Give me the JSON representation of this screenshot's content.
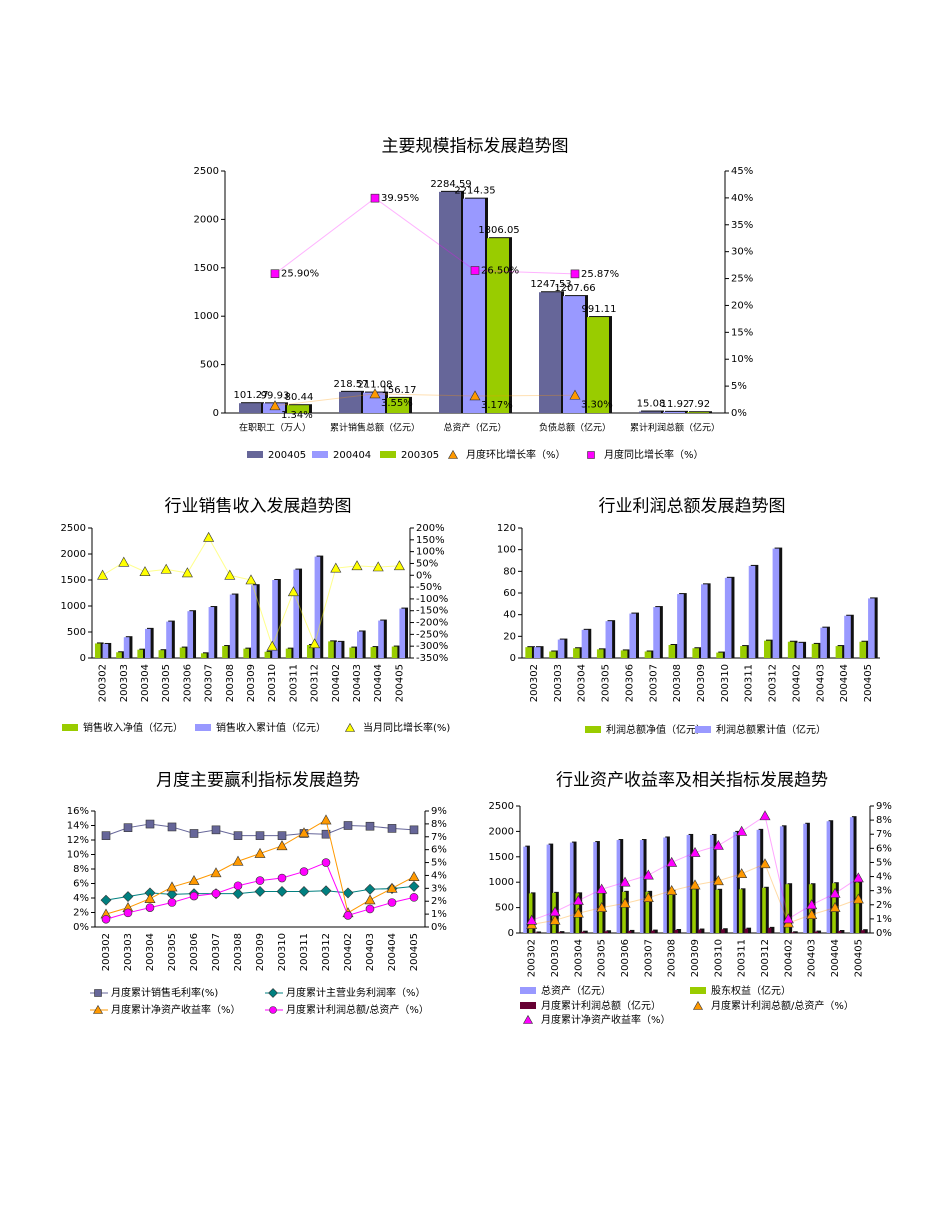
{
  "chart_data": [
    {
      "type": "bar",
      "title": "主要规模指标发展趋势图",
      "categories": [
        "在职职工（万人）",
        "累计销售总额（亿元）",
        "总资产（亿元）",
        "负债总额（亿元）",
        "累计利润总额（亿元）"
      ],
      "series": [
        {
          "name": "200405",
          "type": "bar",
          "color": "#666699",
          "values": [
            101.27,
            218.57,
            2284.59,
            1247.53,
            15.08
          ]
        },
        {
          "name": "200404",
          "type": "bar",
          "color": "#9999ff",
          "values": [
            99.93,
            211.08,
            2214.35,
            1207.66,
            11.92
          ]
        },
        {
          "name": "200305",
          "type": "bar",
          "color": "#99cc00",
          "values": [
            80.44,
            156.17,
            1806.05,
            991.11,
            7.92
          ]
        },
        {
          "name": "月度环比增长率（%）",
          "type": "line",
          "marker": "triangle",
          "color": "#ff9900",
          "axis": "y2",
          "values": [
            1.34,
            3.55,
            3.17,
            3.3,
            null
          ],
          "value_labels": [
            "1.34%",
            "3.55%",
            "3.17%",
            "3.30%",
            null
          ]
        },
        {
          "name": "月度同比增长率（%）",
          "type": "line",
          "marker": "square",
          "color": "#ff00ff",
          "axis": "y2",
          "values": [
            25.9,
            39.95,
            26.5,
            25.87,
            null
          ],
          "value_labels": [
            "25.90%",
            "39.95%",
            "26.50%",
            "25.87%",
            null
          ]
        }
      ],
      "bar_labels": true,
      "ylim": [
        0,
        2500
      ],
      "yticks": [
        0,
        500,
        1000,
        1500,
        2000,
        2500
      ],
      "y2lim": [
        0,
        45
      ],
      "y2ticks": [
        {
          "value": 0,
          "label": "0%"
        },
        {
          "value": 5,
          "label": "5%"
        },
        {
          "value": 10,
          "label": "10%"
        },
        {
          "value": 15,
          "label": "15%"
        },
        {
          "value": 20,
          "label": "20%"
        },
        {
          "value": 25,
          "label": "25%"
        },
        {
          "value": 30,
          "label": "30%"
        },
        {
          "value": 35,
          "label": "35%"
        },
        {
          "value": 40,
          "label": "40%"
        },
        {
          "value": 45,
          "label": "45%"
        }
      ],
      "grid": false
    },
    {
      "type": "bar",
      "title": "行业销售收入发展趋势图",
      "categories": [
        "200302",
        "200303",
        "200304",
        "200305",
        "200306",
        "200307",
        "200308",
        "200309",
        "200310",
        "200311",
        "200312",
        "200402",
        "200403",
        "200404",
        "200405"
      ],
      "series": [
        {
          "name": "销售收入净值（亿元）",
          "type": "bar",
          "color": "#99cc00",
          "values": [
            280,
            110,
            160,
            150,
            200,
            90,
            230,
            180,
            120,
            180,
            250,
            320,
            200,
            210,
            220
          ]
        },
        {
          "name": "销售收入累计值（亿元）",
          "type": "bar",
          "color": "#9999ff",
          "values": [
            270,
            400,
            560,
            700,
            900,
            980,
            1220,
            1400,
            1500,
            1700,
            1950,
            310,
            510,
            720,
            950
          ]
        },
        {
          "name": "当月同比增长率(%)",
          "type": "line",
          "marker": "triangle",
          "color": "#ffff00",
          "axis": "y2",
          "values": [
            0,
            55,
            15,
            25,
            10,
            160,
            0,
            -20,
            -300,
            -70,
            -290,
            30,
            40,
            35,
            40
          ]
        }
      ],
      "ylim": [
        0,
        2500
      ],
      "yticks": [
        0,
        500,
        1000,
        1500,
        2000,
        2500
      ],
      "y2lim": [
        -350,
        200
      ],
      "y2ticks": [
        {
          "value": -350,
          "label": "-350%"
        },
        {
          "value": -300,
          "label": "-300%"
        },
        {
          "value": -250,
          "label": "-250%"
        },
        {
          "value": -200,
          "label": "-200%"
        },
        {
          "value": -150,
          "label": "-150%"
        },
        {
          "value": -100,
          "label": "-100%"
        },
        {
          "value": -50,
          "label": "-50%"
        },
        {
          "value": 0,
          "label": "0%"
        },
        {
          "value": 50,
          "label": "50%"
        },
        {
          "value": 100,
          "label": "100%"
        },
        {
          "value": 150,
          "label": "150%"
        },
        {
          "value": 200,
          "label": "200%"
        }
      ],
      "grid": false
    },
    {
      "type": "bar",
      "title": "行业利润总额发展趋势图",
      "categories": [
        "200302",
        "200303",
        "200304",
        "200305",
        "200306",
        "200307",
        "200308",
        "200309",
        "200310",
        "200311",
        "200312",
        "200402",
        "200403",
        "200404",
        "200405"
      ],
      "series": [
        {
          "name": "利润总额净值（亿元）",
          "type": "bar",
          "color": "#99cc00",
          "values": [
            10,
            6,
            9,
            8,
            7,
            6,
            12,
            9,
            5,
            11,
            16,
            15,
            13,
            11,
            15
          ]
        },
        {
          "name": "利润总额累计值（亿元）",
          "type": "bar",
          "color": "#9999ff",
          "values": [
            10,
            17,
            26,
            34,
            41,
            47,
            59,
            68,
            74,
            85,
            101,
            14,
            28,
            39,
            55
          ]
        }
      ],
      "ylim": [
        0,
        120
      ],
      "yticks": [
        0,
        20,
        40,
        60,
        80,
        100,
        120
      ],
      "grid": false
    },
    {
      "type": "line",
      "title": "月度主要赢利指标发展趋势",
      "categories": [
        "200302",
        "200303",
        "200304",
        "200305",
        "200306",
        "200307",
        "200308",
        "200309",
        "200310",
        "200311",
        "200312",
        "200402",
        "200403",
        "200404",
        "200405"
      ],
      "series": [
        {
          "name": "月度累计销售毛利率(%)",
          "type": "line",
          "marker": "square",
          "color": "#666699",
          "values": [
            12.6,
            13.7,
            14.2,
            13.8,
            12.9,
            13.4,
            12.6,
            12.6,
            12.6,
            12.9,
            12.8,
            14.0,
            13.9,
            13.6,
            13.4
          ]
        },
        {
          "name": "月度累计主营业务利润率（%）",
          "type": "line",
          "marker": "diamond",
          "color": "#008080",
          "values": [
            3.7,
            4.2,
            4.7,
            4.5,
            4.6,
            4.6,
            4.6,
            4.9,
            4.9,
            4.9,
            5.0,
            4.7,
            5.2,
            5.3,
            5.6
          ]
        },
        {
          "name": "月度累计净资产收益率（%）",
          "type": "line",
          "marker": "triangle",
          "color": "#ff9900",
          "axis": "y2",
          "values": [
            1.0,
            1.5,
            2.2,
            3.1,
            3.6,
            4.2,
            5.1,
            5.7,
            6.3,
            7.3,
            8.3,
            1.1,
            2.1,
            3.0,
            3.9
          ]
        },
        {
          "name": "月度累计利润总额/总资产（%）",
          "type": "line",
          "marker": "circle",
          "color": "#ff00ff",
          "axis": "y2",
          "values": [
            0.6,
            1.1,
            1.5,
            1.9,
            2.4,
            2.6,
            3.2,
            3.6,
            3.8,
            4.3,
            5.0,
            0.9,
            1.4,
            1.9,
            2.3
          ]
        }
      ],
      "ylim": [
        0,
        16
      ],
      "yticks": [
        {
          "value": 0,
          "label": "0%"
        },
        {
          "value": 2,
          "label": "2%"
        },
        {
          "value": 4,
          "label": "4%"
        },
        {
          "value": 6,
          "label": "6%"
        },
        {
          "value": 8,
          "label": "8%"
        },
        {
          "value": 10,
          "label": "10%"
        },
        {
          "value": 12,
          "label": "12%"
        },
        {
          "value": 14,
          "label": "14%"
        },
        {
          "value": 16,
          "label": "16%"
        }
      ],
      "y2lim": [
        0,
        9
      ],
      "y2ticks": [
        {
          "value": 0,
          "label": "0%"
        },
        {
          "value": 1,
          "label": "1%"
        },
        {
          "value": 2,
          "label": "2%"
        },
        {
          "value": 3,
          "label": "3%"
        },
        {
          "value": 4,
          "label": "4%"
        },
        {
          "value": 5,
          "label": "5%"
        },
        {
          "value": 6,
          "label": "6%"
        },
        {
          "value": 7,
          "label": "7%"
        },
        {
          "value": 8,
          "label": "8%"
        },
        {
          "value": 9,
          "label": "9%"
        }
      ],
      "grid": false
    },
    {
      "type": "bar",
      "title": "行业资产收益率及相关指标发展趋势",
      "categories": [
        "200302",
        "200303",
        "200304",
        "200305",
        "200306",
        "200307",
        "200308",
        "200309",
        "200310",
        "200311",
        "200312",
        "200402",
        "200403",
        "200404",
        "200405"
      ],
      "series": [
        {
          "name": "总资产（亿元）",
          "type": "bar",
          "color": "#9999ff",
          "values": [
            1700,
            1740,
            1780,
            1790,
            1830,
            1830,
            1880,
            1930,
            1930,
            1990,
            2030,
            2100,
            2150,
            2200,
            2280
          ]
        },
        {
          "name": "股东权益（亿元）",
          "type": "bar",
          "color": "#99cc00",
          "values": [
            780,
            790,
            780,
            790,
            810,
            810,
            830,
            860,
            850,
            860,
            890,
            960,
            960,
            980,
            990
          ]
        },
        {
          "name": "月度累计利润总额（亿元）",
          "type": "bar",
          "color": "#660033",
          "values": [
            10,
            17,
            26,
            34,
            41,
            47,
            59,
            68,
            74,
            85,
            101,
            14,
            28,
            39,
            55
          ]
        },
        {
          "name": "月度累计利润总额/总资产（%）",
          "type": "line",
          "marker": "triangle",
          "color": "#ff9900",
          "axis": "y2",
          "values": [
            0.6,
            0.9,
            1.4,
            1.8,
            2.1,
            2.5,
            3.0,
            3.4,
            3.7,
            4.2,
            4.9,
            0.7,
            1.3,
            1.8,
            2.4
          ]
        },
        {
          "name": "月度累计净资产收益率（%）",
          "type": "line",
          "marker": "triangle",
          "color": "#ff00ff",
          "axis": "y2",
          "values": [
            0.9,
            1.5,
            2.3,
            3.1,
            3.6,
            4.1,
            5.0,
            5.7,
            6.2,
            7.2,
            8.3,
            1.0,
            2.0,
            2.8,
            3.9
          ]
        }
      ],
      "ylim": [
        0,
        2500
      ],
      "yticks": [
        0,
        500,
        1000,
        1500,
        2000,
        2500
      ],
      "y2lim": [
        0,
        9
      ],
      "y2ticks": [
        {
          "value": 0,
          "label": "0%"
        },
        {
          "value": 1,
          "label": "1%"
        },
        {
          "value": 2,
          "label": "2%"
        },
        {
          "value": 3,
          "label": "3%"
        },
        {
          "value": 4,
          "label": "4%"
        },
        {
          "value": 5,
          "label": "5%"
        },
        {
          "value": 6,
          "label": "6%"
        },
        {
          "value": 7,
          "label": "7%"
        },
        {
          "value": 8,
          "label": "8%"
        },
        {
          "value": 9,
          "label": "9%"
        }
      ],
      "grid": false
    }
  ]
}
